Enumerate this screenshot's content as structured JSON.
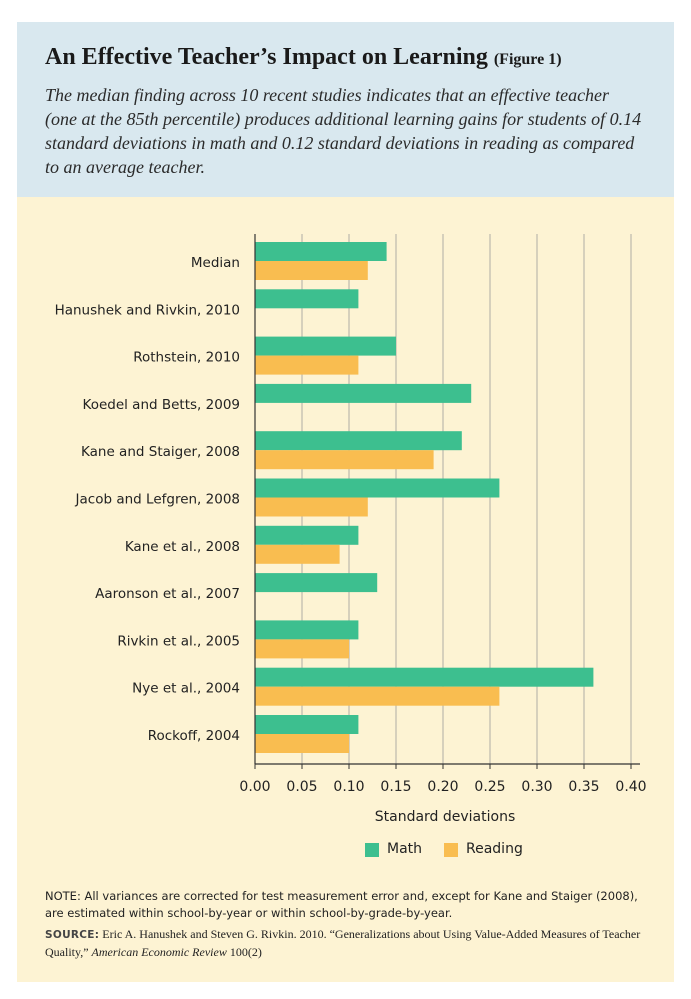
{
  "title": "An Effective Teacher’s Impact on Learning",
  "figure_label": "(Figure 1)",
  "subtitle": "The median finding across 10 recent studies indicates that an effective teacher (one at the 85th percentile) produces additional learning gains for students of 0.14 standard deviations in math and 0.12 standard deviations in reading as compared to an average teacher.",
  "note": "NOTE: All variances are corrected for test measurement error and, except for Kane and Staiger (2008), are estimated within school-by-year or within school-by-grade-by-year.",
  "source": {
    "label": "SOURCE:",
    "text": "Eric A. Hanushek and Steven G. Rivkin. 2010. “Generalizations about Using Value-Added Measures of Teacher Quality,”",
    "journal": "American Economic Review",
    "citation": "100(2)"
  },
  "colors": {
    "math": "#3dbf8f",
    "reading": "#f9bd50",
    "header_bg": "#d9e8ef",
    "panel_bg": "#fdf3d3"
  },
  "chart_data": {
    "type": "bar",
    "orientation": "horizontal",
    "categories": [
      "Median",
      "Hanushek and Rivkin, 2010",
      "Rothstein, 2010",
      "Koedel and Betts, 2009",
      "Kane and Staiger, 2008",
      "Jacob and Lefgren, 2008",
      "Kane et al., 2008",
      "Aaronson et al., 2007",
      "Rivkin et al., 2005",
      "Nye et al., 2004",
      "Rockoff, 2004"
    ],
    "series": [
      {
        "name": "Math",
        "values": [
          0.14,
          0.11,
          0.15,
          0.23,
          0.22,
          0.26,
          0.11,
          0.13,
          0.11,
          0.36,
          0.11
        ]
      },
      {
        "name": "Reading",
        "values": [
          0.12,
          null,
          0.11,
          null,
          0.19,
          0.12,
          0.09,
          null,
          0.1,
          0.26,
          0.1
        ]
      }
    ],
    "xlabel": "Standard deviations",
    "xlim": [
      0,
      0.41
    ],
    "ticks": [
      "0.00",
      "0.05",
      "0.10",
      "0.15",
      "0.20",
      "0.25",
      "0.30",
      "0.35",
      "0.40"
    ],
    "grid": true,
    "legend_position": "bottom"
  }
}
